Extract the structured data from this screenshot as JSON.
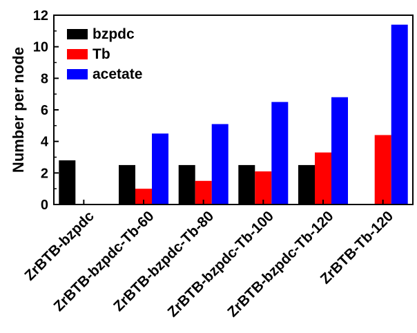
{
  "chart_data": {
    "type": "bar",
    "categories": [
      "ZrBTB-bzpdc",
      "ZrBTB-bzpdc-Tb-60",
      "ZrBTB-bzpdc-Tb-80",
      "ZrBTB-bzpdc-Tb-100",
      "ZrBTB-bzpdc-Tb-120",
      "ZrBTB-Tb-120"
    ],
    "series": [
      {
        "name": "bzpdc",
        "color": "#000000",
        "values": [
          2.8,
          2.5,
          2.5,
          2.5,
          2.5,
          0
        ]
      },
      {
        "name": "Tb",
        "color": "#ff0000",
        "values": [
          0,
          1.0,
          1.5,
          2.1,
          3.3,
          4.4
        ]
      },
      {
        "name": "acetate",
        "color": "#0000ff",
        "values": [
          0,
          4.5,
          5.1,
          6.5,
          6.8,
          11.4
        ]
      }
    ],
    "title": "",
    "xlabel": "",
    "ylabel": "Number per node",
    "ylim": [
      0,
      12
    ],
    "yticks": [
      0,
      2,
      4,
      6,
      8,
      10,
      12
    ],
    "grid": false,
    "legend_position": "top-left"
  }
}
